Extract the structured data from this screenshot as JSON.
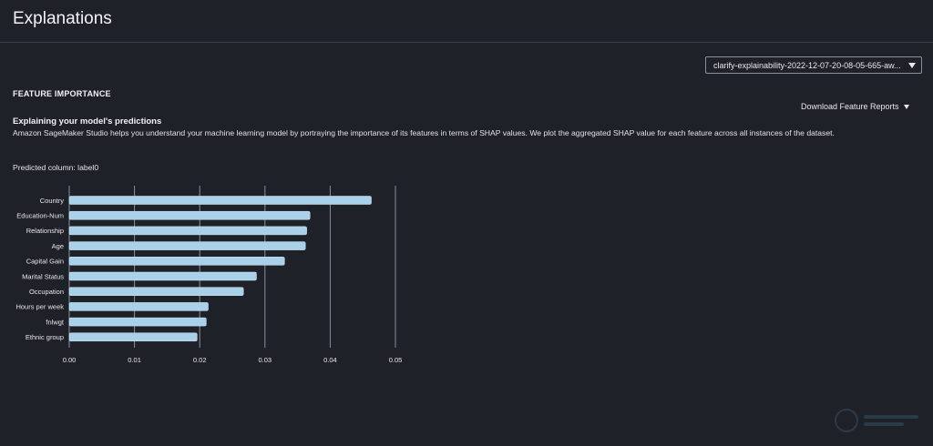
{
  "header": {
    "title": "Explanations"
  },
  "dataset_select": {
    "value": "clarify-explainability-2022-12-07-20-08-05-665-aw..."
  },
  "feature_importance": {
    "heading": "FEATURE IMPORTANCE",
    "download_label": "Download Feature Reports",
    "explain_title": "Explaining your model's predictions",
    "explain_desc": "Amazon SageMaker Studio helps you understand your machine learning model by portraying the importance of its features in terms of SHAP values. We plot the aggregated SHAP value for each feature across all instances of the dataset.",
    "predicted_column": "Predicted column: label0"
  },
  "chart_data": {
    "type": "bar",
    "orientation": "horizontal",
    "categories": [
      "Country",
      "Education-Num",
      "Relationship",
      "Age",
      "Capital Gain",
      "Marital Status",
      "Occupation",
      "Hours per week",
      "fnlwgt",
      "Ethnic group"
    ],
    "values": [
      0.0463,
      0.0369,
      0.0364,
      0.0362,
      0.033,
      0.0287,
      0.0267,
      0.0213,
      0.021,
      0.0196
    ],
    "xticks": [
      "0.00",
      "0.01",
      "0.02",
      "0.03",
      "0.04",
      "0.05"
    ],
    "xlim": [
      0,
      0.05
    ],
    "bar_color": "#a9d1ea",
    "grid": true
  },
  "colors": {
    "background": "#1f2129",
    "text": "#e8e9ec",
    "grid": "#8a8f9a"
  }
}
